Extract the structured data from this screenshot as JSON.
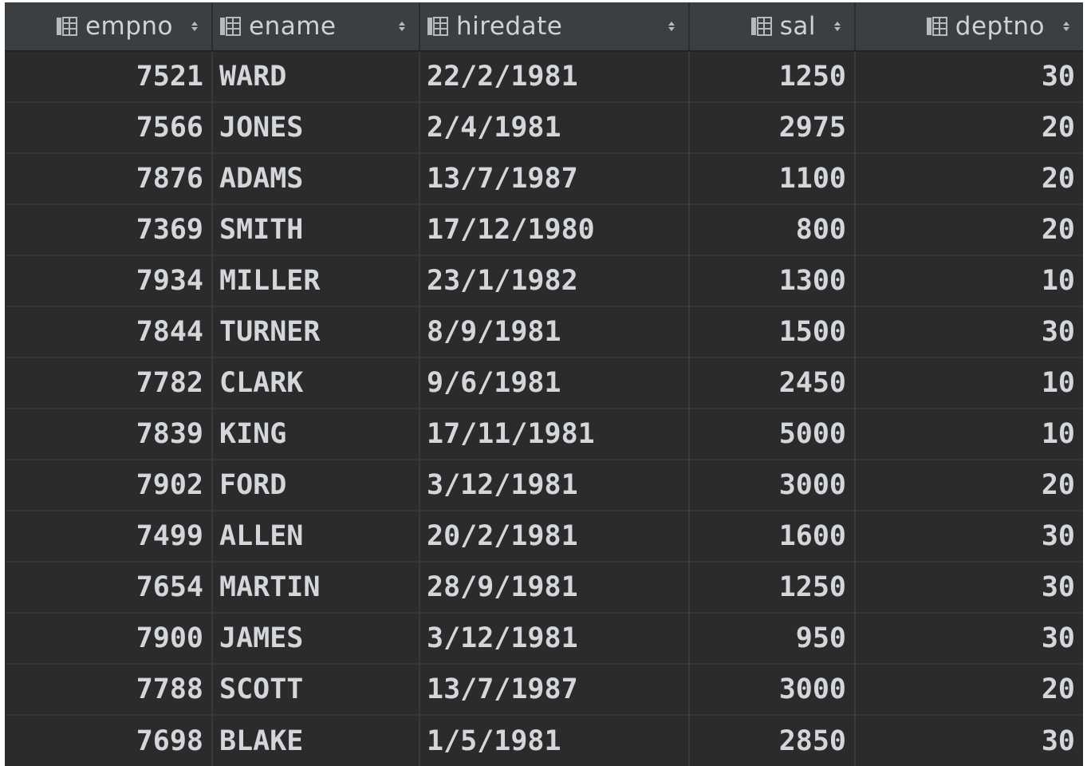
{
  "table": {
    "columns": [
      {
        "key": "empno",
        "label": "empno",
        "icon": "column-icon",
        "align": "right"
      },
      {
        "key": "ename",
        "label": "ename",
        "icon": "column-icon",
        "align": "left"
      },
      {
        "key": "hiredate",
        "label": "hiredate",
        "icon": "column-icon",
        "align": "left"
      },
      {
        "key": "sal",
        "label": "sal",
        "icon": "column-icon",
        "align": "right"
      },
      {
        "key": "deptno",
        "label": "deptno",
        "icon": "column-icon",
        "align": "right"
      }
    ],
    "rows": [
      {
        "empno": "7521",
        "ename": "WARD",
        "hiredate": "22/2/1981",
        "sal": "1250",
        "deptno": "30"
      },
      {
        "empno": "7566",
        "ename": "JONES",
        "hiredate": "2/4/1981",
        "sal": "2975",
        "deptno": "20"
      },
      {
        "empno": "7876",
        "ename": "ADAMS",
        "hiredate": "13/7/1987",
        "sal": "1100",
        "deptno": "20"
      },
      {
        "empno": "7369",
        "ename": "SMITH",
        "hiredate": "17/12/1980",
        "sal": "800",
        "deptno": "20"
      },
      {
        "empno": "7934",
        "ename": "MILLER",
        "hiredate": "23/1/1982",
        "sal": "1300",
        "deptno": "10"
      },
      {
        "empno": "7844",
        "ename": "TURNER",
        "hiredate": "8/9/1981",
        "sal": "1500",
        "deptno": "30"
      },
      {
        "empno": "7782",
        "ename": "CLARK",
        "hiredate": "9/6/1981",
        "sal": "2450",
        "deptno": "10"
      },
      {
        "empno": "7839",
        "ename": "KING",
        "hiredate": "17/11/1981",
        "sal": "5000",
        "deptno": "10"
      },
      {
        "empno": "7902",
        "ename": "FORD",
        "hiredate": "3/12/1981",
        "sal": "3000",
        "deptno": "20"
      },
      {
        "empno": "7499",
        "ename": "ALLEN",
        "hiredate": "20/2/1981",
        "sal": "1600",
        "deptno": "30"
      },
      {
        "empno": "7654",
        "ename": "MARTIN",
        "hiredate": "28/9/1981",
        "sal": "1250",
        "deptno": "30"
      },
      {
        "empno": "7900",
        "ename": "JAMES",
        "hiredate": "3/12/1981",
        "sal": "950",
        "deptno": "30"
      },
      {
        "empno": "7788",
        "ename": "SCOTT",
        "hiredate": "13/7/1987",
        "sal": "3000",
        "deptno": "20"
      },
      {
        "empno": "7698",
        "ename": "BLAKE",
        "hiredate": "1/5/1981",
        "sal": "2850",
        "deptno": "30"
      }
    ]
  },
  "colors": {
    "background": "#2b2b2b",
    "header_background": "#3c3f41",
    "text": "#d3d7db",
    "header_text": "#cfd3d7",
    "grid_line": "#3a3a3a"
  }
}
